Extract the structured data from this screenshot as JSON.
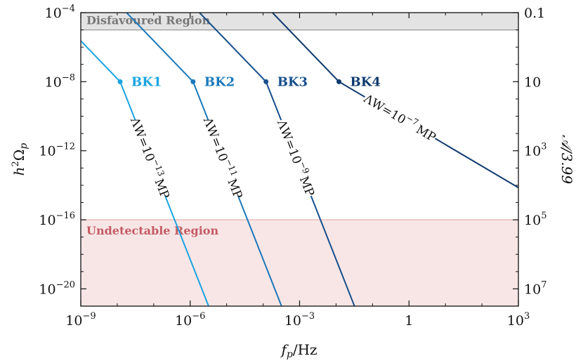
{
  "chart_data": {
    "type": "line",
    "title": "",
    "xlabel": "f_p/Hz",
    "ylabel": "h^2 Ω_p",
    "y2label": "𝒜/3.99",
    "xscale": "log",
    "yscale": "log",
    "xlim": [
      1e-09,
      1000
    ],
    "ylim": [
      1e-21,
      0.0001
    ],
    "x_ticks": [
      {
        "value": 1e-09,
        "base": "10",
        "exp": "−9"
      },
      {
        "value": 1e-06,
        "base": "10",
        "exp": "−6"
      },
      {
        "value": 0.001,
        "base": "10",
        "exp": "−3"
      },
      {
        "value": 1,
        "base": "1",
        "exp": ""
      },
      {
        "value": 1000,
        "base": "10",
        "exp": "3"
      }
    ],
    "y_ticks": [
      {
        "value": 0.0001,
        "base": "10",
        "exp": "−4"
      },
      {
        "value": 1e-08,
        "base": "10",
        "exp": "−8"
      },
      {
        "value": 1e-12,
        "base": "10",
        "exp": "−12"
      },
      {
        "value": 1e-16,
        "base": "10",
        "exp": "−16"
      },
      {
        "value": 1e-20,
        "base": "10",
        "exp": "−20"
      }
    ],
    "y2_ticks": [
      {
        "value": 0.0001,
        "base": "0.1",
        "exp": ""
      },
      {
        "value": 1e-08,
        "base": "10",
        "exp": ""
      },
      {
        "value": 1e-12,
        "base": "10",
        "exp": "3"
      },
      {
        "value": 1e-16,
        "base": "10",
        "exp": "5"
      },
      {
        "value": 1e-20,
        "base": "10",
        "exp": "7"
      }
    ],
    "regions": [
      {
        "label": "Disfavoured Region",
        "y_from": 1e-05,
        "y_to": 0.0001,
        "fill": "#e3e3e3",
        "edge": "#999999",
        "text_color": "#777777"
      },
      {
        "label": "Undetectable Region",
        "y_from": 1e-21,
        "y_to": 1e-16,
        "fill": "#f8e6e6",
        "edge": "#e8b8b8",
        "text_color": "#c45a63"
      }
    ],
    "series": [
      {
        "name": "BK1",
        "color": "#1aa3e0",
        "x": [
          1.8e-10,
          1.2e-08,
          3.2e-06
        ],
        "y": [
          0.0001,
          1e-08,
          1e-21
        ],
        "label_base": "ΛW=10",
        "label_exp": "−13",
        "label_unit": "MP"
      },
      {
        "name": "BK2",
        "color": "#1a78bb",
        "x": [
          1.8e-08,
          1.2e-06,
          0.00032
        ],
        "y": [
          0.0001,
          1e-08,
          1e-21
        ],
        "label_base": "ΛW=10",
        "label_exp": "−11",
        "label_unit": "MP"
      },
      {
        "name": "BK3",
        "color": "#164f8c",
        "x": [
          1.8e-06,
          0.00012,
          0.032
        ],
        "y": [
          0.0001,
          1e-08,
          1e-21
        ],
        "label_base": "ΛW=10",
        "label_exp": "−9",
        "label_unit": "MP"
      },
      {
        "name": "BK4",
        "color": "#0f3a6e",
        "x": [
          0.00018,
          0.012,
          1000
        ],
        "y": [
          0.0001,
          1e-08,
          7.3e-15
        ],
        "label_base": "ΛW=10",
        "label_exp": "−7",
        "label_unit": "MP"
      }
    ]
  }
}
